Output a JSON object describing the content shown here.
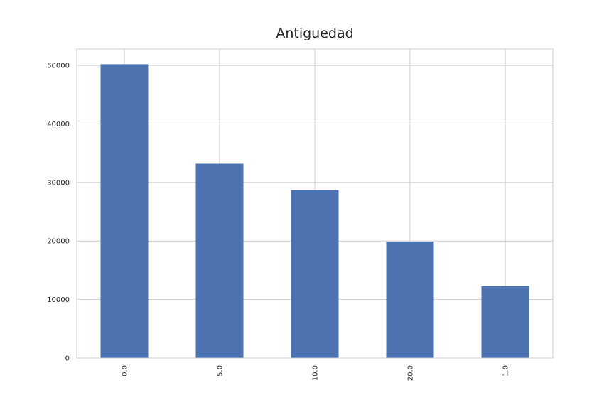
{
  "chart_data": {
    "type": "bar",
    "title": "Antiguedad",
    "xlabel": "",
    "ylabel": "",
    "categories": [
      "0.0",
      "5.0",
      "10.0",
      "20.0",
      "1.0"
    ],
    "values": [
      50200,
      33200,
      28700,
      19900,
      12300
    ],
    "ylim": [
      0,
      52800
    ],
    "yticks": [
      0,
      10000,
      20000,
      30000,
      40000,
      50000
    ],
    "ytick_labels": [
      "0",
      "10000",
      "20000",
      "30000",
      "40000",
      "50000"
    ],
    "grid": true,
    "legend": "none",
    "colors": {
      "bar": "#4c72b0",
      "grid": "#cccccc",
      "text": "#262626"
    }
  }
}
